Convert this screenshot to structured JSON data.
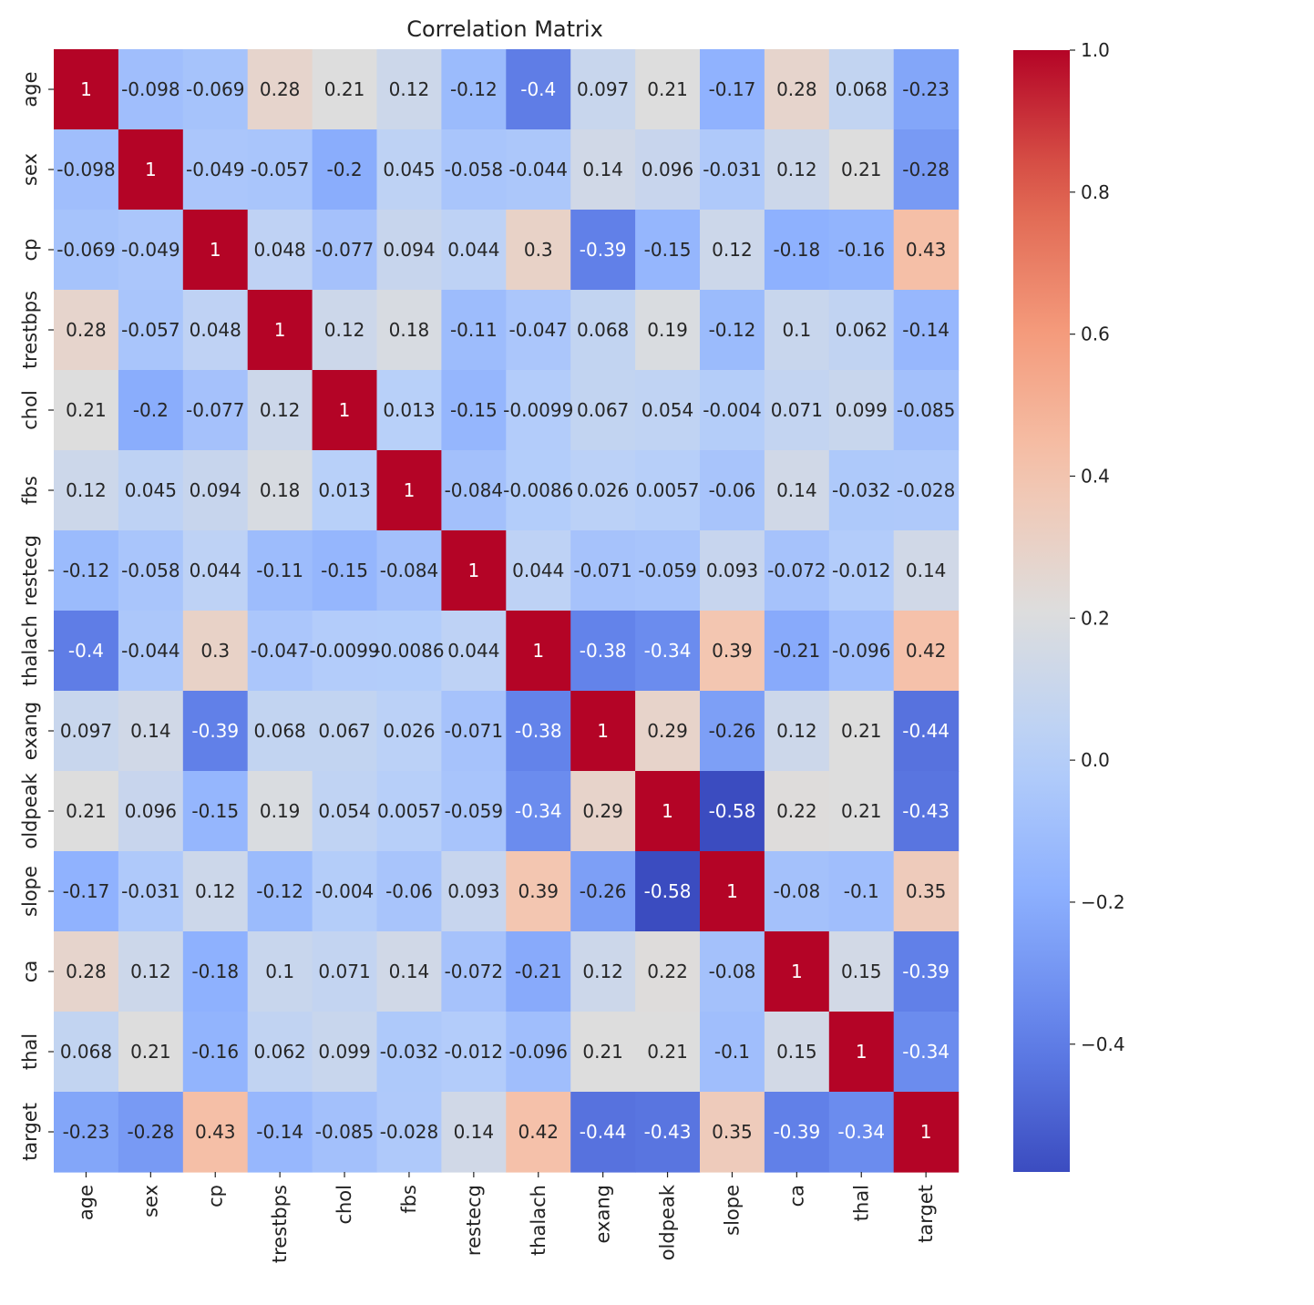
{
  "chart_data": {
    "type": "heatmap",
    "title": "Correlation Matrix",
    "colormap": "coolwarm",
    "vmin": -0.58,
    "vmax": 1.0,
    "labels": [
      "age",
      "sex",
      "cp",
      "trestbps",
      "chol",
      "fbs",
      "restecg",
      "thalach",
      "exang",
      "oldpeak",
      "slope",
      "ca",
      "thal",
      "target"
    ],
    "annotations": [
      [
        "1",
        "-0.098",
        "-0.069",
        "0.28",
        "0.21",
        "0.12",
        "-0.12",
        "-0.4",
        "0.097",
        "0.21",
        "-0.17",
        "0.28",
        "0.068",
        "-0.23"
      ],
      [
        "-0.098",
        "1",
        "-0.049",
        "-0.057",
        "-0.2",
        "0.045",
        "-0.058",
        "-0.044",
        "0.14",
        "0.096",
        "-0.031",
        "0.12",
        "0.21",
        "-0.28"
      ],
      [
        "-0.069",
        "-0.049",
        "1",
        "0.048",
        "-0.077",
        "0.094",
        "0.044",
        "0.3",
        "-0.39",
        "-0.15",
        "0.12",
        "-0.18",
        "-0.16",
        "0.43"
      ],
      [
        "0.28",
        "-0.057",
        "0.048",
        "1",
        "0.12",
        "0.18",
        "-0.11",
        "-0.047",
        "0.068",
        "0.19",
        "-0.12",
        "0.1",
        "0.062",
        "-0.14"
      ],
      [
        "0.21",
        "-0.2",
        "-0.077",
        "0.12",
        "1",
        "0.013",
        "-0.15",
        "-0.0099",
        "0.067",
        "0.054",
        "-0.004",
        "0.071",
        "0.099",
        "-0.085"
      ],
      [
        "0.12",
        "0.045",
        "0.094",
        "0.18",
        "0.013",
        "1",
        "-0.084",
        "-0.0086",
        "0.026",
        "0.0057",
        "-0.06",
        "0.14",
        "-0.032",
        "-0.028"
      ],
      [
        "-0.12",
        "-0.058",
        "0.044",
        "-0.11",
        "-0.15",
        "-0.084",
        "1",
        "0.044",
        "-0.071",
        "-0.059",
        "0.093",
        "-0.072",
        "-0.012",
        "0.14"
      ],
      [
        "-0.4",
        "-0.044",
        "0.3",
        "-0.047",
        "-0.0099",
        "-0.0086",
        "0.044",
        "1",
        "-0.38",
        "-0.34",
        "0.39",
        "-0.21",
        "-0.096",
        "0.42"
      ],
      [
        "0.097",
        "0.14",
        "-0.39",
        "0.068",
        "0.067",
        "0.026",
        "-0.071",
        "-0.38",
        "1",
        "0.29",
        "-0.26",
        "0.12",
        "0.21",
        "-0.44"
      ],
      [
        "0.21",
        "0.096",
        "-0.15",
        "0.19",
        "0.054",
        "0.0057",
        "-0.059",
        "-0.34",
        "0.29",
        "1",
        "-0.58",
        "0.22",
        "0.21",
        "-0.43"
      ],
      [
        "-0.17",
        "-0.031",
        "0.12",
        "-0.12",
        "-0.004",
        "-0.06",
        "0.093",
        "0.39",
        "-0.26",
        "-0.58",
        "1",
        "-0.08",
        "-0.1",
        "0.35"
      ],
      [
        "0.28",
        "0.12",
        "-0.18",
        "0.1",
        "0.071",
        "0.14",
        "-0.072",
        "-0.21",
        "0.12",
        "0.22",
        "-0.08",
        "1",
        "0.15",
        "-0.39"
      ],
      [
        "0.068",
        "0.21",
        "-0.16",
        "0.062",
        "0.099",
        "-0.032",
        "-0.012",
        "-0.096",
        "0.21",
        "0.21",
        "-0.1",
        "0.15",
        "1",
        "-0.34"
      ],
      [
        "-0.23",
        "-0.28",
        "0.43",
        "-0.14",
        "-0.085",
        "-0.028",
        "0.14",
        "0.42",
        "-0.44",
        "-0.43",
        "0.35",
        "-0.39",
        "-0.34",
        "1"
      ]
    ],
    "colorbar_ticks": [
      "1.0",
      "0.8",
      "0.6",
      "0.4",
      "0.2",
      "0.0",
      "−0.2",
      "−0.4"
    ],
    "colorbar_tick_values": [
      1.0,
      0.8,
      0.6,
      0.4,
      0.2,
      0.0,
      -0.2,
      -0.4
    ],
    "legend": "colorbar-right",
    "grid": false
  }
}
